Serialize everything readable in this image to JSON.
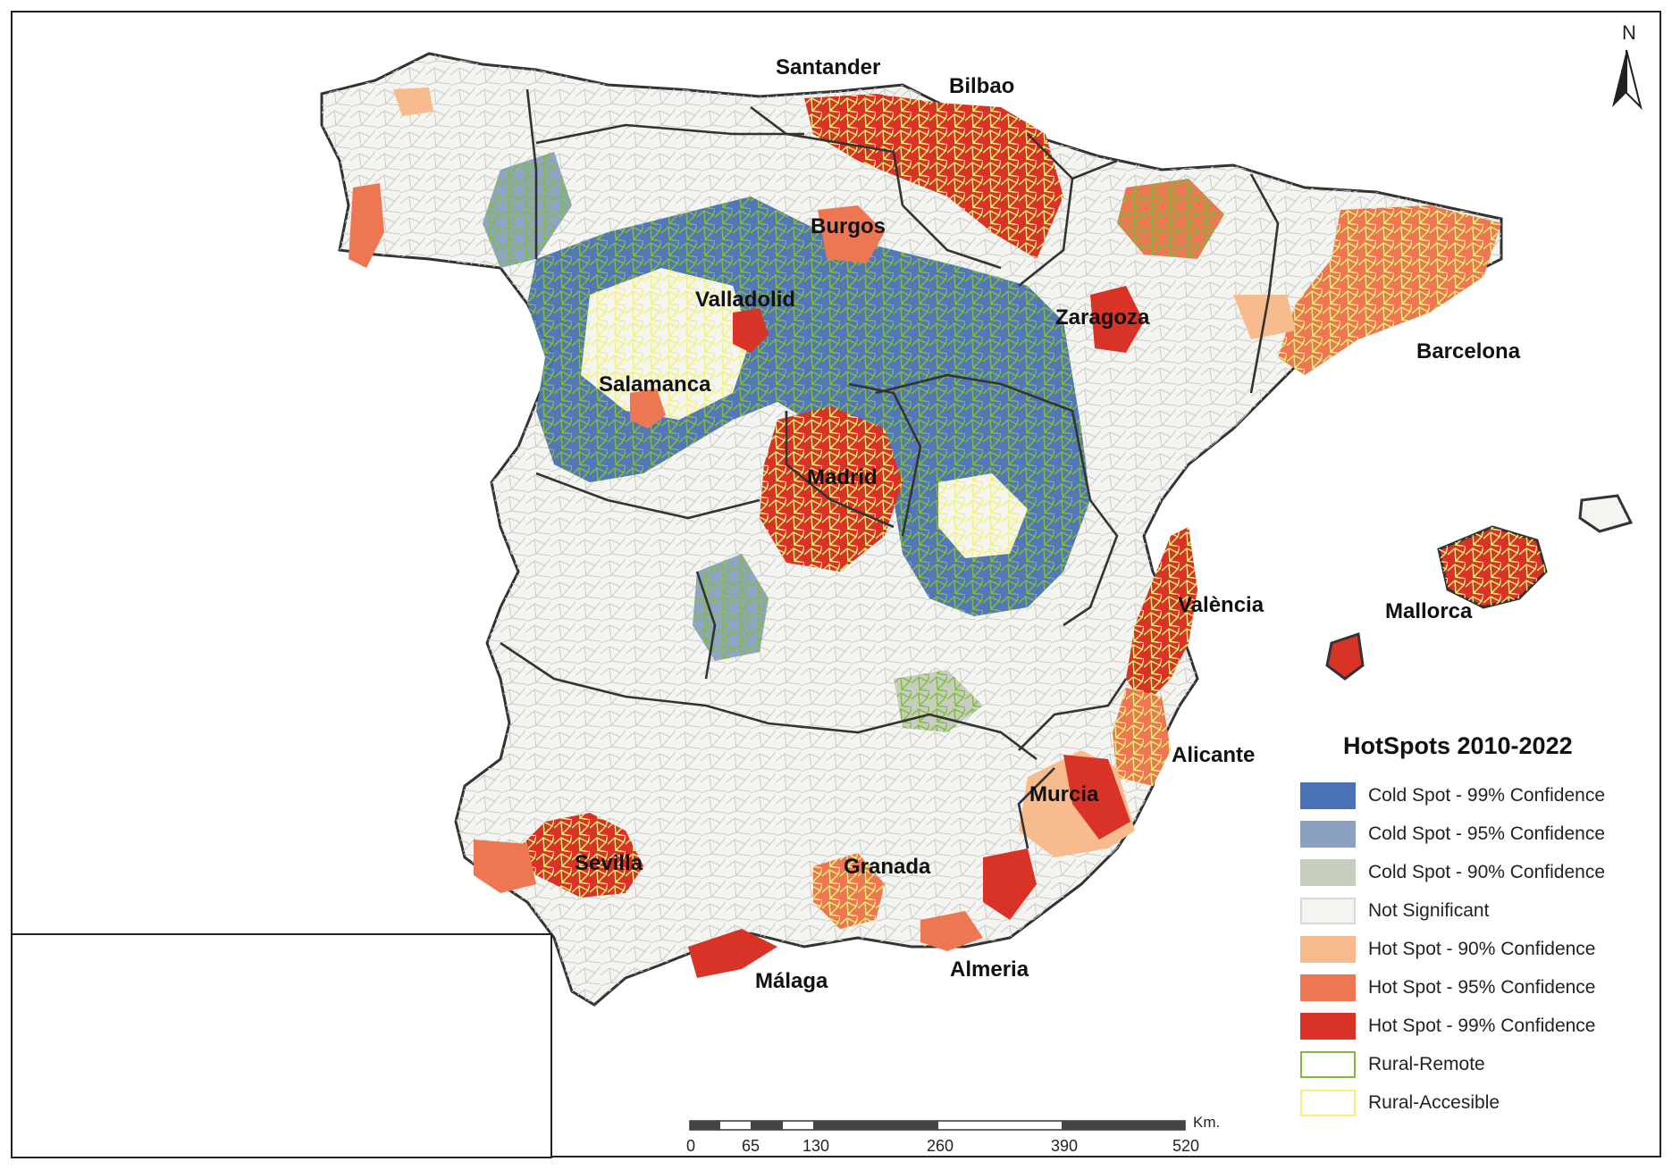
{
  "legend": {
    "title": "HotSpots 2010-2022",
    "items": [
      {
        "label": "Cold Spot - 99% Confidence",
        "color": "#4a72b4",
        "border": "#4a72b4"
      },
      {
        "label": "Cold Spot - 95% Confidence",
        "color": "#8aa1c2",
        "border": "#8aa1c2"
      },
      {
        "label": "Cold Spot - 90% Confidence",
        "color": "#c5cdbd",
        "border": "#c5cdbd"
      },
      {
        "label": "Not Significant",
        "color": "#f4f4f0",
        "border": "#d8d8d8"
      },
      {
        "label": "Hot Spot - 90% Confidence",
        "color": "#f7bb8d",
        "border": "#f7bb8d"
      },
      {
        "label": "Hot Spot - 95% Confidence",
        "color": "#ed7752",
        "border": "#ed7752"
      },
      {
        "label": "Hot Spot - 99% Confidence",
        "color": "#d93227",
        "border": "#d93227"
      },
      {
        "label": "Rural-Remote",
        "color": "#ffffff",
        "border": "#7fb83a"
      },
      {
        "label": "Rural-Accesible",
        "color": "#ffffff",
        "border": "#f4f07a"
      }
    ]
  },
  "cities": {
    "santander": "Santander",
    "bilbao": "Bilbao",
    "burgos": "Burgos",
    "valladolid": "Valladolid",
    "zaragoza": "Zaragoza",
    "barcelona": "Barcelona",
    "salamanca": "Salamanca",
    "madrid": "Madrid",
    "valencia": "València",
    "mallorca": "Mallorca",
    "alicante": "Alicante",
    "murcia": "Murcia",
    "sevilla": "Sevilla",
    "granada": "Granada",
    "malaga": "Málaga",
    "almeria": "Almeria"
  },
  "north_arrow": "N",
  "scale": {
    "unit": "Km.",
    "ticks": [
      "0",
      "65",
      "130",
      "260",
      "390",
      "520"
    ]
  }
}
